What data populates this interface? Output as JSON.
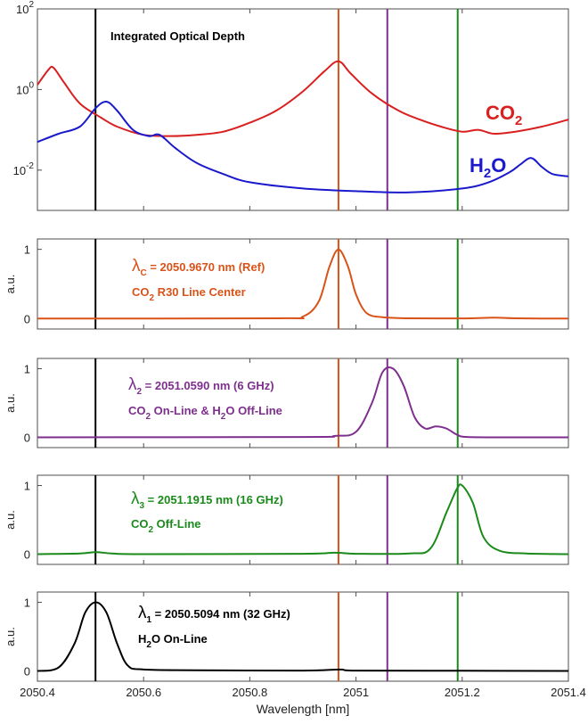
{
  "chart_data": {
    "type": "line",
    "xlabel": "Wavelength [nm]",
    "xlim": [
      2050.4,
      2051.4
    ],
    "xticks": [
      "2050.4",
      "2050.6",
      "2050.8",
      "2051",
      "2051.2",
      "2051.4"
    ],
    "xtick_values": [
      2050.4,
      2050.6,
      2050.8,
      2051.0,
      2051.2,
      2051.4
    ],
    "vlines": [
      {
        "x": 2050.5094,
        "color": "#000000"
      },
      {
        "x": 2050.967,
        "color": "#d95319"
      },
      {
        "x": 2051.059,
        "color": "#7e2f8e"
      },
      {
        "x": 2051.1915,
        "color": "#1a8a1a"
      }
    ],
    "panels": [
      {
        "id": "optical-depth",
        "yscale": "log",
        "ylim": [
          0.001,
          100
        ],
        "yticks": [
          0.01,
          1,
          100
        ],
        "ytick_base": [
          "10",
          "10",
          "10"
        ],
        "ytick_exp": [
          "-2",
          "0",
          "2"
        ],
        "title": "Integrated Optical Depth",
        "series": [
          {
            "key": "co2",
            "label_main": "CO",
            "label_sub": "2",
            "color": "#d92020",
            "x": [
              2050.4,
              2050.42,
              2050.43,
              2050.45,
              2050.48,
              2050.52,
              2050.55,
              2050.6,
              2050.65,
              2050.7,
              2050.75,
              2050.8,
              2050.85,
              2050.9,
              2050.94,
              2050.967,
              2050.99,
              2051.03,
              2051.08,
              2051.12,
              2051.16,
              2051.2,
              2051.23,
              2051.26,
              2051.3,
              2051.35,
              2051.4
            ],
            "y": [
              1.3,
              3.0,
              3.5,
              1.5,
              0.45,
              0.2,
              0.12,
              0.075,
              0.07,
              0.075,
              0.09,
              0.15,
              0.3,
              0.9,
              2.8,
              5.0,
              2.5,
              0.8,
              0.3,
              0.18,
              0.12,
              0.09,
              0.1,
              0.08,
              0.09,
              0.12,
              0.18
            ]
          },
          {
            "key": "h2o",
            "label_main": "H",
            "label_sub": "2",
            "label_tail": "O",
            "color": "#1a1acc",
            "x": [
              2050.4,
              2050.44,
              2050.48,
              2050.51,
              2050.53,
              2050.55,
              2050.58,
              2050.61,
              2050.63,
              2050.66,
              2050.7,
              2050.75,
              2050.8,
              2050.9,
              2051.0,
              2051.1,
              2051.2,
              2051.25,
              2051.29,
              2051.31,
              2051.33,
              2051.35,
              2051.37,
              2051.4
            ],
            "y": [
              0.05,
              0.08,
              0.12,
              0.35,
              0.5,
              0.3,
              0.1,
              0.07,
              0.075,
              0.035,
              0.015,
              0.008,
              0.005,
              0.0035,
              0.003,
              0.0028,
              0.0035,
              0.005,
              0.009,
              0.014,
              0.02,
              0.012,
              0.008,
              0.007
            ]
          }
        ]
      },
      {
        "id": "lambda-c",
        "ylabel": "a.u.",
        "ylim": [
          -0.15,
          1.15
        ],
        "yticks": [
          0,
          1
        ],
        "ytick_labels": [
          "0",
          "1"
        ],
        "color": "#d95319",
        "label_line1_sym": "λ",
        "label_line1_sub": "C",
        "label_line1_rest": " = 2050.9670 nm (Ref)",
        "label_line2_a": "CO",
        "label_line2_sub": "2",
        "label_line2_rest": " R30 Line Center",
        "x": [
          2050.4,
          2050.85,
          2050.9,
          2050.93,
          2050.95,
          2050.967,
          2050.985,
          2051.0,
          2051.02,
          2051.05,
          2051.1,
          2051.2,
          2051.26,
          2051.3,
          2051.4
        ],
        "y": [
          0,
          0.005,
          0.03,
          0.25,
          0.75,
          1.0,
          0.75,
          0.35,
          0.08,
          0.02,
          0.005,
          0.003,
          0.015,
          0.005,
          0
        ]
      },
      {
        "id": "lambda-2",
        "ylabel": "a.u.",
        "ylim": [
          -0.15,
          1.15
        ],
        "yticks": [
          0,
          1
        ],
        "ytick_labels": [
          "0",
          "1"
        ],
        "color": "#7e2f8e",
        "label_line1_sym": "λ",
        "label_line1_sub": "2",
        "label_line1_rest": " = 2051.0590 nm (6 GHz)",
        "label_line2_a": "CO",
        "label_line2_sub": "2",
        "label_line2_rest": " On-Line & H",
        "label_line2_sub2": "2",
        "label_line2_tail": "O Off-Line",
        "x": [
          2050.4,
          2050.9,
          2050.96,
          2051.0,
          2051.03,
          2051.05,
          2051.07,
          2051.09,
          2051.11,
          2051.13,
          2051.15,
          2051.17,
          2051.19,
          2051.21,
          2051.3,
          2051.4
        ],
        "y": [
          0,
          0.005,
          0.02,
          0.08,
          0.5,
          0.95,
          1.0,
          0.75,
          0.3,
          0.13,
          0.16,
          0.13,
          0.04,
          0.005,
          0,
          0
        ]
      },
      {
        "id": "lambda-3",
        "ylabel": "a.u.",
        "ylim": [
          -0.15,
          1.15
        ],
        "yticks": [
          0,
          1
        ],
        "ytick_labels": [
          "0",
          "1"
        ],
        "color": "#1a8a1a",
        "label_line1_sym": "λ",
        "label_line1_sub": "3",
        "label_line1_rest": " = 2051.1915 nm (16 GHz)",
        "label_line2_a": "CO",
        "label_line2_sub": "2",
        "label_line2_rest": " Off-Line",
        "x": [
          2050.4,
          2050.48,
          2050.51,
          2050.54,
          2050.6,
          2050.9,
          2050.96,
          2051.0,
          2051.1,
          2051.14,
          2051.17,
          2051.19,
          2051.2,
          2051.22,
          2051.24,
          2051.27,
          2051.32,
          2051.4
        ],
        "y": [
          0,
          0.01,
          0.03,
          0.01,
          0,
          0.005,
          0.02,
          0.005,
          0.01,
          0.08,
          0.6,
          0.95,
          1.0,
          0.75,
          0.25,
          0.05,
          0.01,
          0
        ]
      },
      {
        "id": "lambda-1",
        "ylabel": "a.u.",
        "ylim": [
          -0.15,
          1.15
        ],
        "yticks": [
          0,
          1
        ],
        "ytick_labels": [
          "0",
          "1"
        ],
        "color": "#000000",
        "label_line1_sym": "λ",
        "label_line1_sub": "1",
        "label_line1_rest": " = 2050.5094 nm (32 GHz)",
        "label_line2_a": "H",
        "label_line2_sub": "2",
        "label_line2_rest": "O On-Line",
        "x": [
          2050.4,
          2050.44,
          2050.47,
          2050.49,
          2050.51,
          2050.53,
          2050.55,
          2050.57,
          2050.6,
          2050.7,
          2050.9,
          2050.97,
          2051.0,
          2051.2,
          2051.4
        ],
        "y": [
          0,
          0.05,
          0.4,
          0.85,
          1.0,
          0.85,
          0.4,
          0.08,
          0.02,
          0.01,
          0.005,
          0.02,
          0.005,
          0.002,
          0
        ]
      }
    ]
  }
}
